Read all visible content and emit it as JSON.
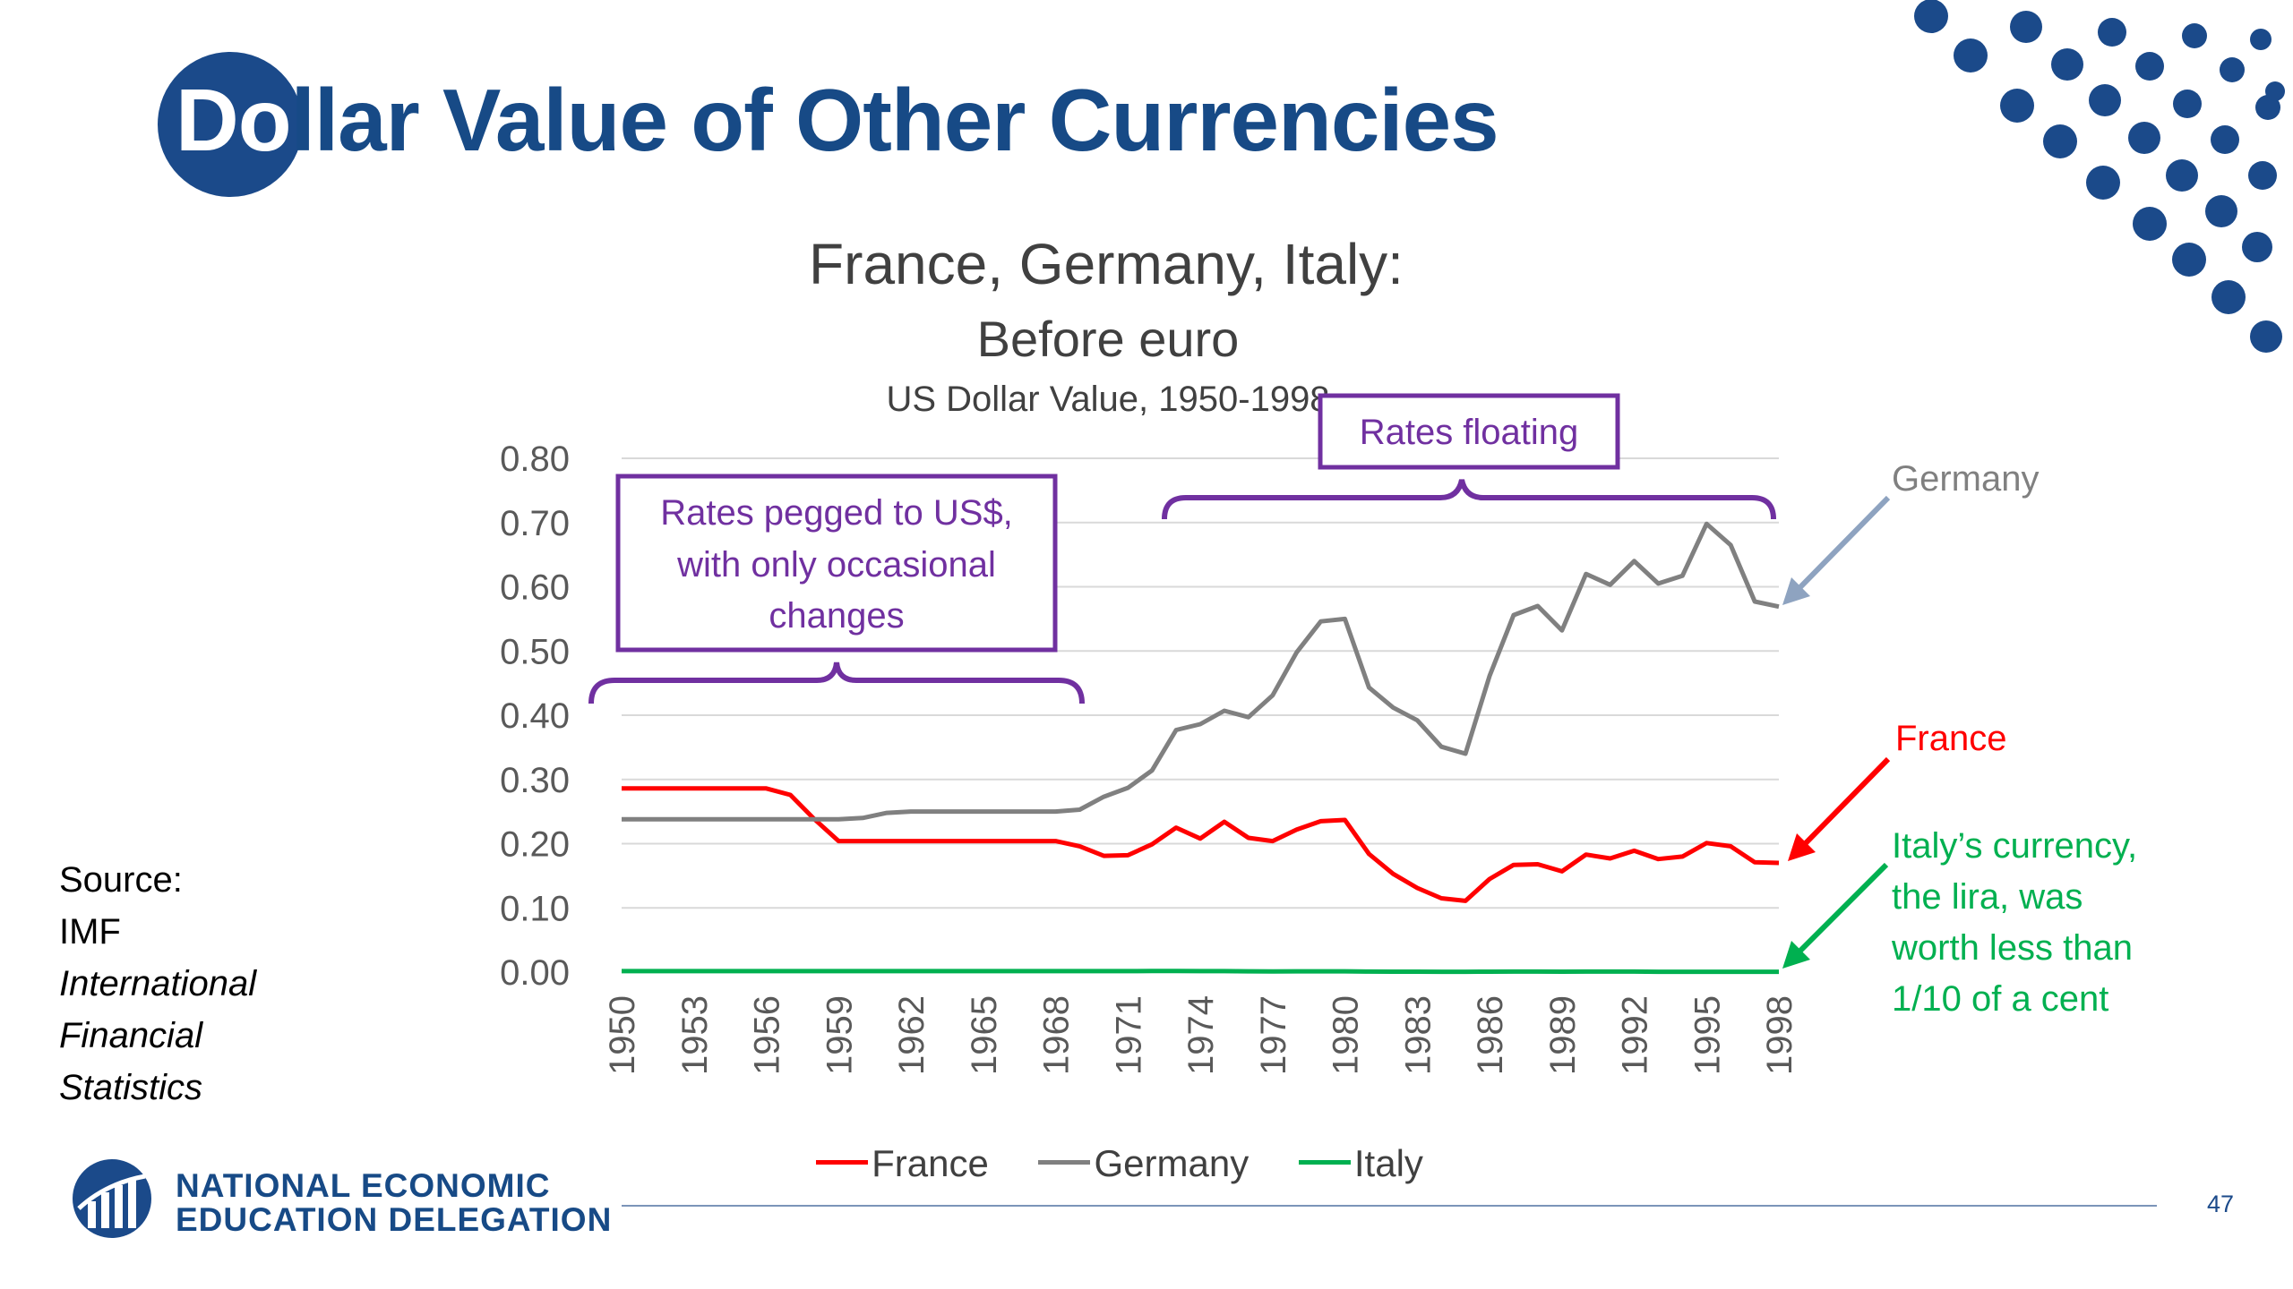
{
  "slide": {
    "title_first": "Do",
    "title_rest": "llar Value of Other Currencies",
    "page_number": "47"
  },
  "source": {
    "label": "Source:",
    "org": "IMF",
    "pub_line1": "International",
    "pub_line2": "Financial",
    "pub_line3": "Statistics"
  },
  "logo": {
    "line1": "NATIONAL ECONOMIC",
    "line2": "EDUCATION DELEGATION"
  },
  "colors": {
    "france": "#ff0000",
    "germany": "#808080",
    "italy": "#00b050",
    "annotation_purple": "#7030a0",
    "arrow_germany": "#8ea3c0",
    "brand_blue": "#174a86",
    "grid": "#d9d9d9"
  },
  "annotations": {
    "pegged": [
      "Rates pegged to US$,",
      "with only occasional",
      "changes"
    ],
    "floating": "Rates floating",
    "germany": "Germany",
    "france": "France",
    "italy": [
      "Italy’s currency,",
      "the lira, was",
      "worth less than",
      "1/10 of a cent"
    ]
  },
  "chart_data": {
    "type": "line",
    "title": "France, Germany, Italy:",
    "subtitle": "Before euro",
    "subtitle2": "US Dollar Value, 1950-1998",
    "ylim": [
      0,
      0.8
    ],
    "yticks": [
      "0.80",
      "0.70",
      "0.60",
      "0.50",
      "0.40",
      "0.30",
      "0.20",
      "0.10",
      "0.00"
    ],
    "xtick_labels": [
      "1950",
      "1953",
      "1956",
      "1959",
      "1962",
      "1965",
      "1968",
      "1971",
      "1974",
      "1977",
      "1980",
      "1983",
      "1986",
      "1989",
      "1992",
      "1995",
      "1998"
    ],
    "x": [
      1950,
      1951,
      1952,
      1953,
      1954,
      1955,
      1956,
      1957,
      1958,
      1959,
      1960,
      1961,
      1962,
      1963,
      1964,
      1965,
      1966,
      1967,
      1968,
      1969,
      1970,
      1971,
      1972,
      1973,
      1974,
      1975,
      1976,
      1977,
      1978,
      1979,
      1980,
      1981,
      1982,
      1983,
      1984,
      1985,
      1986,
      1987,
      1988,
      1989,
      1990,
      1991,
      1992,
      1993,
      1994,
      1995,
      1996,
      1997,
      1998
    ],
    "legend": "bottom",
    "grid": true,
    "series": [
      {
        "name": "France",
        "color": "#ff0000",
        "values": [
          0.286,
          0.286,
          0.286,
          0.286,
          0.286,
          0.286,
          0.286,
          0.276,
          0.238,
          0.204,
          0.204,
          0.204,
          0.204,
          0.204,
          0.204,
          0.204,
          0.204,
          0.204,
          0.204,
          0.196,
          0.181,
          0.182,
          0.199,
          0.225,
          0.208,
          0.234,
          0.209,
          0.204,
          0.222,
          0.235,
          0.237,
          0.184,
          0.153,
          0.131,
          0.115,
          0.111,
          0.145,
          0.167,
          0.168,
          0.157,
          0.183,
          0.177,
          0.189,
          0.176,
          0.18,
          0.201,
          0.196,
          0.171,
          0.17
        ]
      },
      {
        "name": "Germany",
        "color": "#808080",
        "values": [
          0.238,
          0.238,
          0.238,
          0.238,
          0.238,
          0.238,
          0.238,
          0.238,
          0.238,
          0.238,
          0.24,
          0.248,
          0.25,
          0.25,
          0.25,
          0.25,
          0.25,
          0.25,
          0.25,
          0.253,
          0.273,
          0.287,
          0.314,
          0.377,
          0.386,
          0.407,
          0.397,
          0.431,
          0.498,
          0.546,
          0.55,
          0.443,
          0.412,
          0.392,
          0.351,
          0.34,
          0.461,
          0.556,
          0.57,
          0.532,
          0.62,
          0.603,
          0.64,
          0.605,
          0.617,
          0.698,
          0.665,
          0.577,
          0.569
        ]
      },
      {
        "name": "Italy",
        "color": "#00b050",
        "values": [
          0.0016,
          0.0016,
          0.0016,
          0.0016,
          0.0016,
          0.0016,
          0.0016,
          0.0016,
          0.0016,
          0.0016,
          0.0016,
          0.0016,
          0.0016,
          0.0016,
          0.0016,
          0.0016,
          0.0016,
          0.0016,
          0.0016,
          0.0016,
          0.0016,
          0.0016,
          0.0017,
          0.0017,
          0.0015,
          0.0015,
          0.0012,
          0.0011,
          0.0012,
          0.0012,
          0.0012,
          0.0009,
          0.0007,
          0.0007,
          0.0006,
          0.0005,
          0.0007,
          0.0008,
          0.0008,
          0.0007,
          0.0008,
          0.0008,
          0.0008,
          0.0006,
          0.0006,
          0.0006,
          0.0006,
          0.0006,
          0.0006
        ]
      }
    ]
  }
}
